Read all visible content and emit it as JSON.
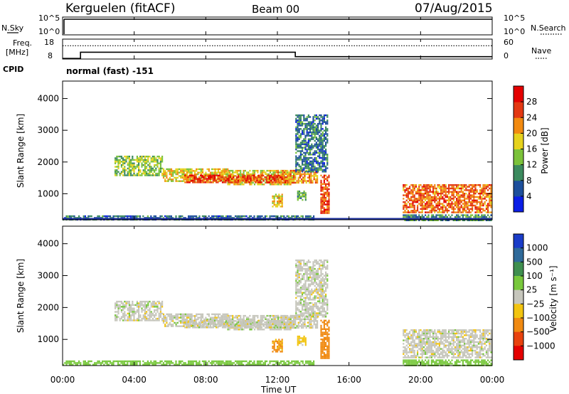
{
  "header": {
    "station": "Kerguelen (fitACF)",
    "beam": "Beam 00",
    "date": "07/Aug/2015"
  },
  "nsky_panel": {
    "left_label": "N.Sky",
    "right_label": "N.Search",
    "left_ticks": [
      "10^5",
      "10^0"
    ],
    "right_ticks": [
      "10^5",
      "10^0"
    ]
  },
  "freq_panel": {
    "left_label_1": "Freq.",
    "left_label_2": "[MHz]",
    "right_label": "Nave",
    "left_ticks": [
      "18",
      "8"
    ],
    "right_ticks": [
      "60",
      "0"
    ],
    "cpid_label": "CPID",
    "cpid_text": "normal (fast) -151"
  },
  "x_axis": {
    "label": "Time UT",
    "ticks": [
      "00:00",
      "04:00",
      "08:00",
      "12:00",
      "16:00",
      "20:00",
      "00:00"
    ]
  },
  "power_panel": {
    "ylabel": "Slant Range [km]",
    "yticks": [
      "1000",
      "2000",
      "3000",
      "4000"
    ],
    "cbar_label": "Power [dB]",
    "cbar_ticks": [
      "4",
      "8",
      "12",
      "16",
      "20",
      "24",
      "28"
    ]
  },
  "velocity_panel": {
    "ylabel": "Slant Range [km]",
    "yticks": [
      "1000",
      "2000",
      "3000",
      "4000"
    ],
    "cbar_label": "Velocity [m s⁻¹]",
    "cbar_ticks": [
      "1000",
      "500",
      "100",
      "25",
      "−25",
      "−100",
      "−500",
      "−1000"
    ]
  },
  "chart_data": {
    "type": "heatmap",
    "x_unit": "hours UT",
    "xlim": [
      0,
      24
    ],
    "ylim": [
      180,
      4550
    ],
    "freq": {
      "ylim": [
        8,
        18
      ],
      "steps": [
        [
          0,
          8.3
        ],
        [
          1,
          11.4
        ],
        [
          13,
          9.2
        ],
        [
          24,
          9.2
        ]
      ]
    },
    "nave": {
      "ylim": [
        0,
        60
      ],
      "steps": [
        [
          0,
          40
        ],
        [
          24,
          40
        ]
      ]
    },
    "nsky_level": 0.88,
    "power_colors": [
      "#0b1ee6",
      "#1d4f9c",
      "#3b8a5e",
      "#7bc23a",
      "#e6d21c",
      "#f28a10",
      "#e33812",
      "#e40000"
    ],
    "velocity_colors": [
      "#1a3cc8",
      "#2f6a9a",
      "#3f8f4f",
      "#78c83c",
      "#c6c6bc",
      "#f2c410",
      "#f08a12",
      "#e8420e",
      "#e40000"
    ],
    "echo_regions": [
      {
        "t0": 2.9,
        "t1": 5.6,
        "r0": 1600,
        "r1": 2200,
        "power": 14,
        "velocity": 0
      },
      {
        "t0": 5.6,
        "t1": 9.2,
        "r0": 1400,
        "r1": 1800,
        "power": 18,
        "velocity": 0
      },
      {
        "t0": 9.2,
        "t1": 13.0,
        "r0": 1300,
        "r1": 1750,
        "power": 18,
        "velocity": 0
      },
      {
        "t0": 12.0,
        "t1": 14.2,
        "r0": 1350,
        "r1": 1750,
        "power": 22,
        "velocity": 0
      },
      {
        "t0": 6.8,
        "t1": 12.5,
        "r0": 1350,
        "r1": 1600,
        "power": 26,
        "velocity": 0
      },
      {
        "t0": 11.7,
        "t1": 12.3,
        "r0": 600,
        "r1": 1000,
        "power": 20,
        "velocity": -120
      },
      {
        "t0": 13.1,
        "t1": 13.6,
        "r0": 800,
        "r1": 1100,
        "power": 12,
        "velocity": -50
      },
      {
        "t0": 14.4,
        "t1": 14.9,
        "r0": 400,
        "r1": 1600,
        "power": 26,
        "velocity": -150
      },
      {
        "t0": 19.0,
        "t1": 23.9,
        "r0": 400,
        "r1": 1300,
        "power": 24,
        "velocity": 0
      },
      {
        "t0": 19.0,
        "t1": 23.9,
        "r0": 180,
        "r1": 350,
        "power": 10,
        "velocity": 60
      },
      {
        "t0": 0.0,
        "t1": 14.0,
        "r0": 180,
        "r1": 320,
        "power": 8,
        "velocity": 60
      },
      {
        "t0": 13.0,
        "t1": 14.8,
        "r0": 1700,
        "r1": 3500,
        "power": 8,
        "velocity": 0
      }
    ]
  }
}
